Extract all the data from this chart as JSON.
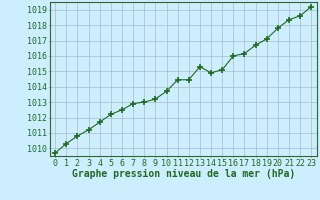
{
  "title": "Graphe pression niveau de la mer (hPa)",
  "x_values": [
    0,
    1,
    2,
    3,
    4,
    5,
    6,
    7,
    8,
    9,
    10,
    11,
    12,
    13,
    14,
    15,
    16,
    17,
    18,
    19,
    20,
    21,
    22,
    23
  ],
  "y_values": [
    1009.7,
    1010.3,
    1010.8,
    1011.2,
    1011.7,
    1012.2,
    1012.5,
    1012.9,
    1013.0,
    1013.2,
    1013.7,
    1014.45,
    1014.45,
    1015.3,
    1014.9,
    1015.1,
    1016.0,
    1016.15,
    1016.7,
    1017.1,
    1017.8,
    1018.35,
    1018.6,
    1019.2
  ],
  "ylim_min": 1009.5,
  "ylim_max": 1019.5,
  "yticks": [
    1010,
    1011,
    1012,
    1013,
    1014,
    1015,
    1016,
    1017,
    1018,
    1019
  ],
  "xlim_min": -0.5,
  "xlim_max": 23.5,
  "line_color": "#1e6b1e",
  "marker_color": "#1e6b1e",
  "bg_color": "#cceeff",
  "grid_color": "#aabbcc",
  "title_color": "#1e6b1e",
  "tick_color": "#1e6b1e",
  "axis_color": "#336633",
  "title_fontsize": 7.0,
  "tick_fontsize": 6.0,
  "marker_size": 4,
  "line_width": 0.8
}
